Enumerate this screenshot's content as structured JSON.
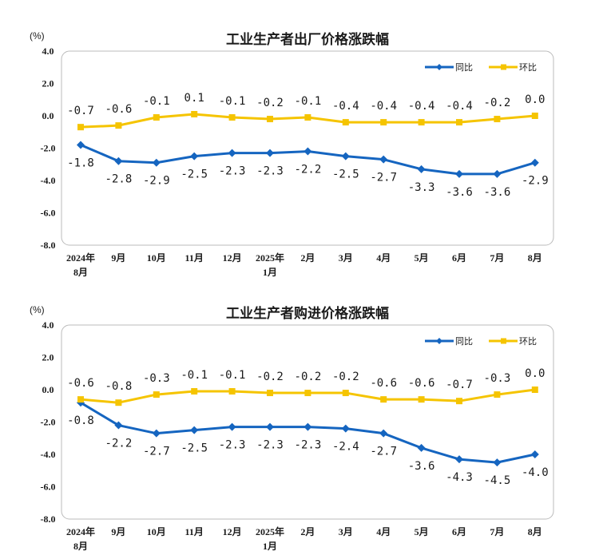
{
  "colors": {
    "yoy": "#1565C0",
    "mom": "#F5C400",
    "frame": "#BBBBBB",
    "axis": "#555555"
  },
  "chart_data": [
    {
      "type": "line",
      "title": "工业生产者出厂价格涨跌幅",
      "unit": "(%)",
      "ylim": [
        -8.0,
        4.0
      ],
      "yticks": [
        "4.0",
        "2.0",
        "0.0",
        "-2.0",
        "-4.0",
        "-6.0",
        "-8.0"
      ],
      "categories": [
        [
          "2024年",
          "8月"
        ],
        [
          "9月"
        ],
        [
          "10月"
        ],
        [
          "11月"
        ],
        [
          "12月"
        ],
        [
          "2025年",
          "1月"
        ],
        [
          "2月"
        ],
        [
          "3月"
        ],
        [
          "4月"
        ],
        [
          "5月"
        ],
        [
          "6月"
        ],
        [
          "7月"
        ],
        [
          "8月"
        ]
      ],
      "legend_position": "top-right",
      "series": [
        {
          "name": "同比",
          "values": [
            -1.8,
            -2.8,
            -2.9,
            -2.5,
            -2.3,
            -2.3,
            -2.2,
            -2.5,
            -2.7,
            -3.3,
            -3.6,
            -3.6,
            -2.9
          ],
          "labels": [
            "-1.8",
            "-2.8",
            "-2.9",
            "-2.5",
            "-2.3",
            "-2.3",
            "-2.2",
            "-2.5",
            "-2.7",
            "-3.3",
            "-3.6",
            "-3.6",
            "-2.9"
          ]
        },
        {
          "name": "环比",
          "values": [
            -0.7,
            -0.6,
            -0.1,
            0.1,
            -0.1,
            -0.2,
            -0.1,
            -0.4,
            -0.4,
            -0.4,
            -0.4,
            -0.2,
            0.0
          ],
          "labels": [
            "-0.7",
            "-0.6",
            "-0.1",
            "0.1",
            "-0.1",
            "-0.2",
            "-0.1",
            "-0.4",
            "-0.4",
            "-0.4",
            "-0.4",
            "-0.2",
            "0.0"
          ]
        }
      ]
    },
    {
      "type": "line",
      "title": "工业生产者购进价格涨跌幅",
      "unit": "(%)",
      "ylim": [
        -8.0,
        4.0
      ],
      "yticks": [
        "4.0",
        "2.0",
        "0.0",
        "-2.0",
        "-4.0",
        "-6.0",
        "-8.0"
      ],
      "categories": [
        [
          "2024年",
          "8月"
        ],
        [
          "9月"
        ],
        [
          "10月"
        ],
        [
          "11月"
        ],
        [
          "12月"
        ],
        [
          "2025年",
          "1月"
        ],
        [
          "2月"
        ],
        [
          "3月"
        ],
        [
          "4月"
        ],
        [
          "5月"
        ],
        [
          "6月"
        ],
        [
          "7月"
        ],
        [
          "8月"
        ]
      ],
      "legend_position": "top-right",
      "series": [
        {
          "name": "同比",
          "values": [
            -0.8,
            -2.2,
            -2.7,
            -2.5,
            -2.3,
            -2.3,
            -2.3,
            -2.4,
            -2.7,
            -3.6,
            -4.3,
            -4.5,
            -4.0
          ],
          "labels": [
            "-0.8",
            "-2.2",
            "-2.7",
            "-2.5",
            "-2.3",
            "-2.3",
            "-2.3",
            "-2.4",
            "-2.7",
            "-3.6",
            "-4.3",
            "-4.5",
            "-4.0"
          ]
        },
        {
          "name": "环比",
          "values": [
            -0.6,
            -0.8,
            -0.3,
            -0.1,
            -0.1,
            -0.2,
            -0.2,
            -0.2,
            -0.6,
            -0.6,
            -0.7,
            -0.3,
            0.0
          ],
          "labels": [
            "-0.6",
            "-0.8",
            "-0.3",
            "-0.1",
            "-0.1",
            "-0.2",
            "-0.2",
            "-0.2",
            "-0.6",
            "-0.6",
            "-0.7",
            "-0.3",
            "0.0"
          ]
        }
      ]
    }
  ]
}
